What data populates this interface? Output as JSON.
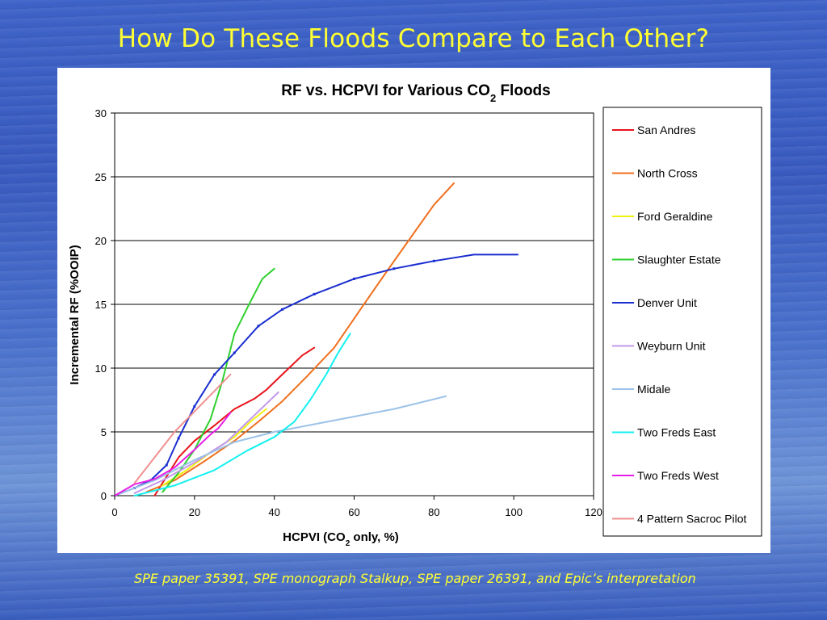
{
  "slide": {
    "title": "How Do These Floods Compare to Each Other?",
    "footnote": "SPE paper 35391, SPE monograph Stalkup, SPE paper 26391, and Epic’s interpretation"
  },
  "chart_data": {
    "type": "line",
    "title_parts": {
      "main": "RF vs. HCPVI for Various CO",
      "sub": "2",
      "tail": " Floods"
    },
    "xlabel_parts": {
      "main": "HCPVI (CO",
      "sub": "2",
      "tail": " only, %)"
    },
    "ylabel": "Incremental RF (%OOIP)",
    "xlim": [
      0,
      120
    ],
    "ylim": [
      0,
      30
    ],
    "xticks": [
      "0",
      "20",
      "40",
      "60",
      "80",
      "100",
      "120"
    ],
    "yticks": [
      "0",
      "5",
      "10",
      "15",
      "20",
      "25",
      "30"
    ],
    "grid": "horizontal",
    "legend_position": "right",
    "series": [
      {
        "name": "San Andres",
        "color": "#e8141a",
        "points": [
          [
            10,
            0
          ],
          [
            13,
            1.5
          ],
          [
            16,
            3
          ],
          [
            20,
            4.3
          ],
          [
            25,
            5.5
          ],
          [
            30,
            6.8
          ],
          [
            35,
            7.6
          ],
          [
            38,
            8.3
          ],
          [
            42,
            9.5
          ],
          [
            47,
            11
          ],
          [
            50,
            11.6
          ]
        ]
      },
      {
        "name": "North Cross",
        "color": "#f0701e",
        "points": [
          [
            8,
            0.3
          ],
          [
            15,
            1.2
          ],
          [
            22,
            2.6
          ],
          [
            30,
            4.3
          ],
          [
            36,
            5.8
          ],
          [
            42,
            7.4
          ],
          [
            48,
            9.3
          ],
          [
            55,
            11.6
          ],
          [
            62,
            14.8
          ],
          [
            68,
            17.5
          ],
          [
            75,
            20.6
          ],
          [
            80,
            22.8
          ],
          [
            85,
            24.5
          ]
        ]
      },
      {
        "name": "Ford Geraldine",
        "color": "#f0f010",
        "points": [
          [
            12,
            0.8
          ],
          [
            18,
            2
          ],
          [
            24,
            3.4
          ],
          [
            30,
            4.6
          ],
          [
            34,
            5.8
          ],
          [
            38,
            6.8
          ]
        ]
      },
      {
        "name": "Slaughter Estate",
        "color": "#2ed12e",
        "points": [
          [
            12,
            0.3
          ],
          [
            16,
            1.8
          ],
          [
            20,
            3.6
          ],
          [
            24,
            6
          ],
          [
            27,
            9
          ],
          [
            30,
            12.7
          ],
          [
            34,
            15.2
          ],
          [
            37,
            17
          ],
          [
            40,
            17.8
          ]
        ]
      },
      {
        "name": "Denver Unit",
        "color": "#1a2ed0",
        "points": [
          [
            0,
            0
          ],
          [
            5,
            0.6
          ],
          [
            9,
            1.2
          ],
          [
            13,
            2.4
          ],
          [
            16,
            4.5
          ],
          [
            20,
            7
          ],
          [
            25,
            9.5
          ],
          [
            30,
            11.2
          ],
          [
            36,
            13.3
          ],
          [
            42,
            14.6
          ],
          [
            50,
            15.8
          ],
          [
            60,
            17
          ],
          [
            70,
            17.8
          ],
          [
            80,
            18.4
          ],
          [
            90,
            18.9
          ],
          [
            101,
            18.9
          ]
        ]
      },
      {
        "name": "Weyburn Unit",
        "color": "#c298ea",
        "points": [
          [
            5,
            0.2
          ],
          [
            12,
            1.2
          ],
          [
            20,
            2.6
          ],
          [
            28,
            4.2
          ],
          [
            34,
            6
          ],
          [
            38,
            7.2
          ],
          [
            41,
            8.1
          ]
        ]
      },
      {
        "name": "Midale",
        "color": "#9cc2e8",
        "points": [
          [
            0,
            0
          ],
          [
            10,
            1.2
          ],
          [
            20,
            2.8
          ],
          [
            30,
            4.2
          ],
          [
            40,
            5
          ],
          [
            50,
            5.6
          ],
          [
            60,
            6.2
          ],
          [
            70,
            6.8
          ],
          [
            83,
            7.8
          ]
        ]
      },
      {
        "name": "Two Freds East",
        "color": "#14f0f0",
        "points": [
          [
            5,
            0
          ],
          [
            15,
            0.8
          ],
          [
            25,
            2
          ],
          [
            33,
            3.5
          ],
          [
            40,
            4.6
          ],
          [
            45,
            5.8
          ],
          [
            49,
            7.5
          ],
          [
            53,
            9.5
          ],
          [
            56,
            11.2
          ],
          [
            59,
            12.7
          ]
        ]
      },
      {
        "name": "Two Freds West",
        "color": "#e81ee8",
        "points": [
          [
            0,
            0
          ],
          [
            5,
            0.9
          ],
          [
            10,
            1.3
          ],
          [
            15,
            2.2
          ],
          [
            20,
            3.6
          ],
          [
            24,
            4.8
          ],
          [
            26,
            5.3
          ],
          [
            29,
            6.5
          ]
        ]
      },
      {
        "name": "4 Pattern Sacroc Pilot",
        "color": "#f09090",
        "points": [
          [
            5,
            1
          ],
          [
            10,
            3
          ],
          [
            15,
            5
          ],
          [
            20,
            6.6
          ],
          [
            25,
            8.2
          ],
          [
            29,
            9.5
          ]
        ]
      }
    ]
  }
}
